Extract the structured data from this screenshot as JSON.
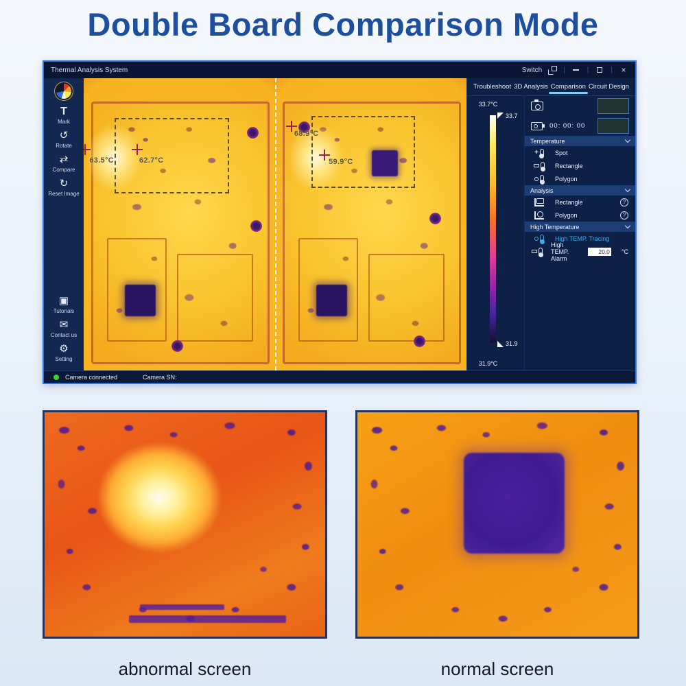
{
  "page": {
    "heading": "Double Board Comparison Mode",
    "caption_left": "abnormal screen",
    "caption_right": "normal screen"
  },
  "titlebar": {
    "app_title": "Thermal Analysis System",
    "switch_label": "Switch",
    "close_glyph": "×"
  },
  "sidebar": {
    "tools": [
      {
        "icon": "T",
        "label": "Mark"
      },
      {
        "icon": "↺",
        "label": "Rotate"
      },
      {
        "icon": "⇄",
        "label": "Compare"
      },
      {
        "icon": "↻",
        "label": "Reset Image"
      }
    ],
    "bottom": [
      {
        "icon": "▣",
        "label": "Tutorials"
      },
      {
        "icon": "✉",
        "label": "Contact us"
      },
      {
        "icon": "⚙",
        "label": "Setting"
      }
    ]
  },
  "viewer": {
    "left_spots": [
      {
        "temp": "63.5°C"
      },
      {
        "temp": "62.7°C"
      }
    ],
    "right_spots": [
      {
        "temp": "68.9°C"
      },
      {
        "temp": "59.9°C"
      }
    ]
  },
  "tabs": {
    "items": [
      {
        "label": "Troubleshoot"
      },
      {
        "label": "3D Analysis"
      },
      {
        "label": "Comparison"
      },
      {
        "label": "Circuit Design"
      }
    ],
    "active": "Comparison"
  },
  "colorbar": {
    "max_label": "33.7°C",
    "max_tick": "33.7",
    "min_tick": "31.9",
    "min_label": "31.9°C"
  },
  "capture": {
    "timer": "00: 00: 00"
  },
  "panel": {
    "temperature": {
      "title": "Temperature",
      "items": [
        {
          "label": "Spot"
        },
        {
          "label": "Rectangle"
        },
        {
          "label": "Polygon"
        }
      ]
    },
    "analysis": {
      "title": "Analysis",
      "items": [
        {
          "label": "Rectangle",
          "badge": "?"
        },
        {
          "label": "Polygon",
          "badge": "?"
        }
      ]
    },
    "high_temperature": {
      "title": "High Temperature",
      "tracing_label": "High TEMP. Tracing",
      "alarm_label": "High TEMP. Alarm",
      "alarm_value": "20.0",
      "alarm_unit": "°C"
    }
  },
  "statusbar": {
    "connection": "Camera connected",
    "camera_sn": "Camera SN:"
  },
  "colors": {
    "heading": "#1d4f9c",
    "window_border": "#2f74d8",
    "tab_active_underline": "#7fd0f5",
    "tracing_text": "#3fa9e8",
    "status_ok": "#35d435"
  },
  "icons": {
    "spot_prefix": "+"
  }
}
